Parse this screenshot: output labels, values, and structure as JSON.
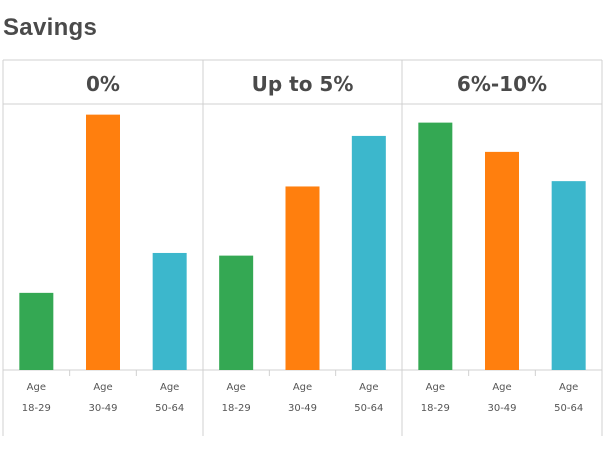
{
  "title": "Savings",
  "chart_data": [
    {
      "type": "bar",
      "title": "0%",
      "categories": [
        "Age\n18-29",
        "Age\n30-49",
        "Age\n50-64"
      ],
      "values": [
        29,
        96,
        44
      ],
      "colors": [
        "#34a853",
        "#ff7f0e",
        "#3cb7cc"
      ]
    },
    {
      "type": "bar",
      "title": "Up to 5%",
      "categories": [
        "Age\n18-29",
        "Age\n30-49",
        "Age\n50-64"
      ],
      "values": [
        43,
        69,
        88
      ],
      "colors": [
        "#34a853",
        "#ff7f0e",
        "#3cb7cc"
      ]
    },
    {
      "type": "bar",
      "title": "6%-10%",
      "categories": [
        "Age\n18-29",
        "Age\n30-49",
        "Age\n50-64"
      ],
      "values": [
        93,
        82,
        71
      ],
      "colors": [
        "#34a853",
        "#ff7f0e",
        "#3cb7cc"
      ]
    }
  ],
  "ylim": [
    0,
    100
  ],
  "grid": false
}
